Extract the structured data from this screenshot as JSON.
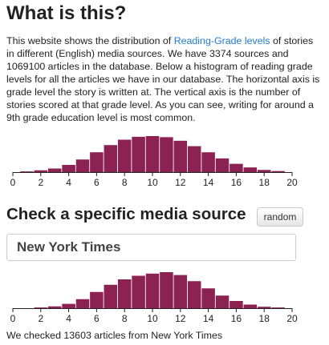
{
  "about": {
    "heading": "What is this?",
    "text_before_link": "This website shows the distribution of ",
    "link_text": "Reading-Grade levels",
    "text_after_link": " of stories in different (English) media sources. We have 3374 sources and 1069100 articles in the database. Below a histogram of reading grade levels for all the articles we have in our database. The horizontal axis is grade level the story is written at. The vertical axis is the number of stories scored at that grade level. As you can see, writing for around a 9th grade education level is most common."
  },
  "check": {
    "heading": "Check a specific media source",
    "random_button_label": "random",
    "source_input_value": "New York Times",
    "result_text": "We checked 13603 articles from New York Times"
  },
  "colors": {
    "bar": "#8b2252",
    "axis": "#222222",
    "link": "#1e7bd0"
  },
  "chart_data": [
    {
      "type": "bar",
      "x": [
        1,
        2,
        3,
        4,
        5,
        6,
        7,
        8,
        9,
        10,
        11,
        12,
        13,
        14,
        15,
        16,
        17,
        18,
        19
      ],
      "values": [
        0.02,
        0.05,
        0.1,
        0.2,
        0.35,
        0.55,
        0.75,
        0.9,
        0.98,
        1.0,
        0.97,
        0.87,
        0.72,
        0.55,
        0.38,
        0.23,
        0.13,
        0.06,
        0.03
      ],
      "xticks": [
        0,
        2,
        4,
        6,
        8,
        10,
        12,
        14,
        16,
        18,
        20
      ],
      "xlim": [
        0,
        20
      ],
      "title": "",
      "xlabel": "",
      "ylabel": ""
    },
    {
      "type": "bar",
      "x": [
        1,
        2,
        3,
        4,
        5,
        6,
        7,
        8,
        9,
        10,
        11,
        12,
        13,
        14,
        15,
        16,
        17,
        18,
        19
      ],
      "values": [
        0.0,
        0.02,
        0.05,
        0.12,
        0.25,
        0.45,
        0.65,
        0.8,
        0.9,
        0.96,
        1.0,
        0.92,
        0.75,
        0.55,
        0.35,
        0.2,
        0.1,
        0.04,
        0.02
      ],
      "xticks": [
        0,
        2,
        4,
        6,
        8,
        10,
        12,
        14,
        16,
        18,
        20
      ],
      "xlim": [
        0,
        20
      ],
      "title": "",
      "xlabel": "",
      "ylabel": ""
    }
  ]
}
